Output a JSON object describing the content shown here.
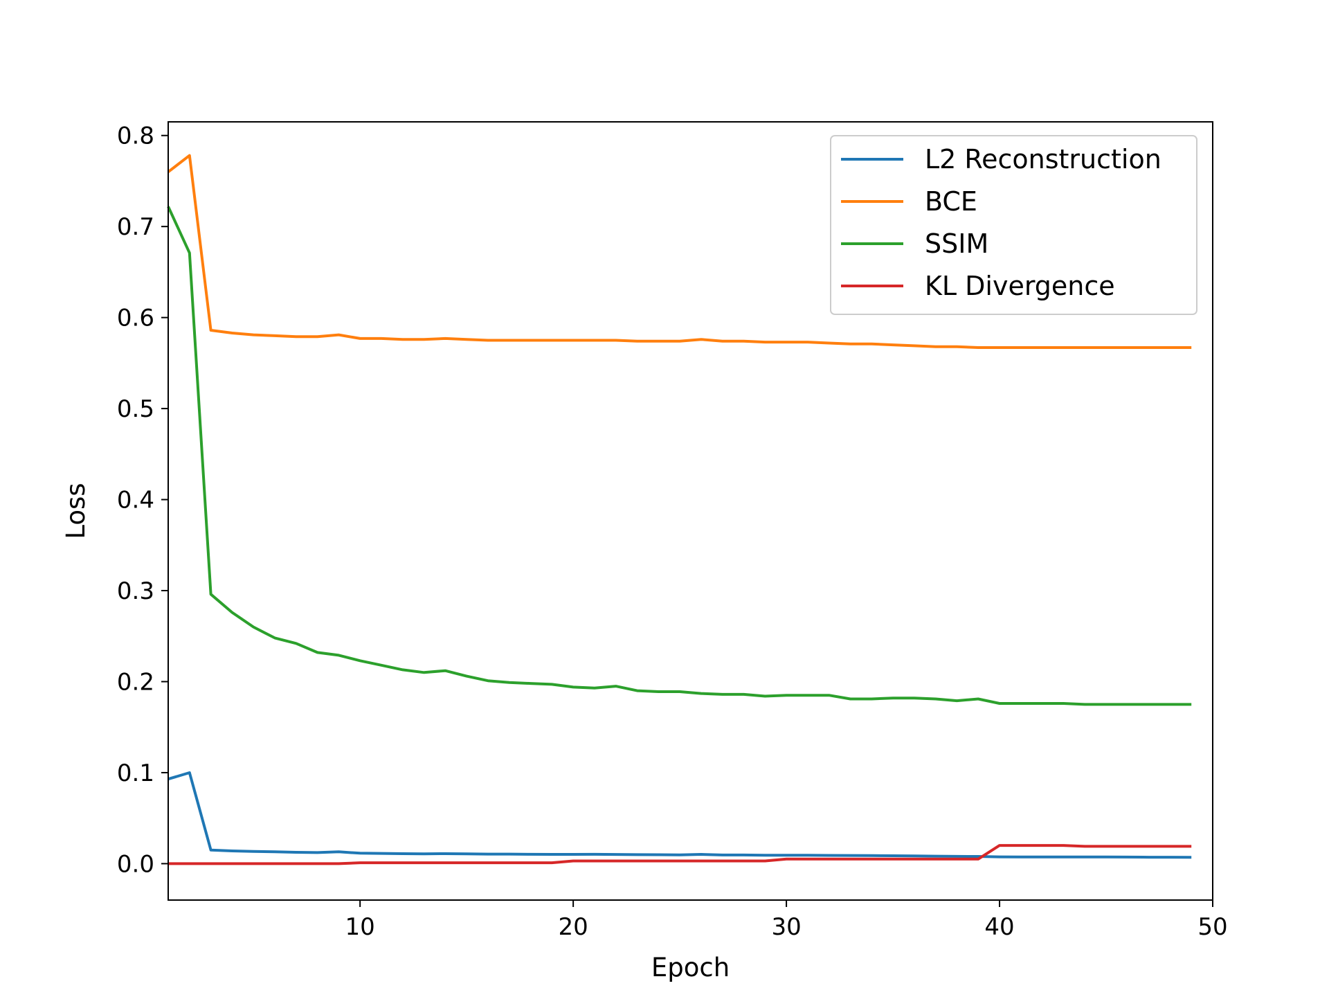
{
  "chart_data": {
    "type": "line",
    "title": "",
    "xlabel": "Epoch",
    "ylabel": "Loss",
    "xlim": [
      1,
      50
    ],
    "ylim": [
      -0.04,
      0.815
    ],
    "xticks": [
      10,
      20,
      30,
      40,
      50
    ],
    "xtick_labels": [
      "10",
      "20",
      "30",
      "40",
      "50"
    ],
    "yticks": [
      0.0,
      0.1,
      0.2,
      0.3,
      0.4,
      0.5,
      0.6,
      0.7,
      0.8
    ],
    "ytick_labels": [
      "0.0",
      "0.1",
      "0.2",
      "0.3",
      "0.4",
      "0.5",
      "0.6",
      "0.7",
      "0.8"
    ],
    "grid": false,
    "legend": "top-right",
    "x": [
      1,
      2,
      3,
      4,
      5,
      6,
      7,
      8,
      9,
      10,
      11,
      12,
      13,
      14,
      15,
      16,
      17,
      18,
      19,
      20,
      21,
      22,
      23,
      24,
      25,
      26,
      27,
      28,
      29,
      30,
      31,
      32,
      33,
      34,
      35,
      36,
      37,
      38,
      39,
      40,
      41,
      42,
      43,
      44,
      45,
      46,
      47,
      48,
      49
    ],
    "series": [
      {
        "name": "L2 Reconstruction",
        "color": "#1f77b4",
        "values": [
          0.093,
          0.1,
          0.015,
          0.014,
          0.0135,
          0.013,
          0.0125,
          0.0122,
          0.013,
          0.0115,
          0.0113,
          0.011,
          0.0108,
          0.011,
          0.0107,
          0.0105,
          0.0105,
          0.0103,
          0.0102,
          0.0102,
          0.0103,
          0.0101,
          0.0099,
          0.0098,
          0.0097,
          0.0102,
          0.0095,
          0.0095,
          0.0093,
          0.0093,
          0.0092,
          0.0091,
          0.009,
          0.0088,
          0.0087,
          0.0085,
          0.0082,
          0.008,
          0.0079,
          0.0075,
          0.0074,
          0.0074,
          0.0074,
          0.0073,
          0.0073,
          0.0072,
          0.0071,
          0.0071,
          0.007
        ]
      },
      {
        "name": "BCE",
        "color": "#ff7f0e",
        "values": [
          0.76,
          0.778,
          0.586,
          0.583,
          0.581,
          0.58,
          0.579,
          0.579,
          0.581,
          0.577,
          0.577,
          0.576,
          0.576,
          0.577,
          0.576,
          0.575,
          0.575,
          0.575,
          0.575,
          0.575,
          0.575,
          0.575,
          0.574,
          0.574,
          0.574,
          0.576,
          0.574,
          0.574,
          0.573,
          0.573,
          0.573,
          0.572,
          0.571,
          0.571,
          0.57,
          0.569,
          0.568,
          0.568,
          0.567,
          0.567,
          0.567,
          0.567,
          0.567,
          0.567,
          0.567,
          0.567,
          0.567,
          0.567,
          0.567
        ]
      },
      {
        "name": "SSIM",
        "color": "#2ca02c",
        "values": [
          0.722,
          0.671,
          0.296,
          0.276,
          0.26,
          0.248,
          0.242,
          0.232,
          0.229,
          0.223,
          0.218,
          0.213,
          0.21,
          0.212,
          0.206,
          0.201,
          0.199,
          0.198,
          0.197,
          0.194,
          0.193,
          0.195,
          0.19,
          0.189,
          0.189,
          0.187,
          0.186,
          0.186,
          0.184,
          0.185,
          0.185,
          0.185,
          0.181,
          0.181,
          0.182,
          0.182,
          0.181,
          0.179,
          0.181,
          0.176,
          0.176,
          0.176,
          0.176,
          0.175,
          0.175,
          0.175,
          0.175,
          0.175,
          0.175
        ]
      },
      {
        "name": "KL Divergence",
        "color": "#d62728",
        "values": [
          0.0,
          0.0,
          0.0,
          0.0,
          0.0,
          0.0,
          0.0,
          0.0,
          0.0,
          0.001,
          0.001,
          0.001,
          0.001,
          0.001,
          0.001,
          0.001,
          0.001,
          0.001,
          0.001,
          0.003,
          0.003,
          0.003,
          0.003,
          0.003,
          0.003,
          0.003,
          0.003,
          0.003,
          0.003,
          0.005,
          0.005,
          0.005,
          0.005,
          0.005,
          0.005,
          0.005,
          0.005,
          0.005,
          0.005,
          0.02,
          0.02,
          0.02,
          0.02,
          0.019,
          0.019,
          0.019,
          0.019,
          0.019,
          0.019
        ]
      }
    ]
  }
}
